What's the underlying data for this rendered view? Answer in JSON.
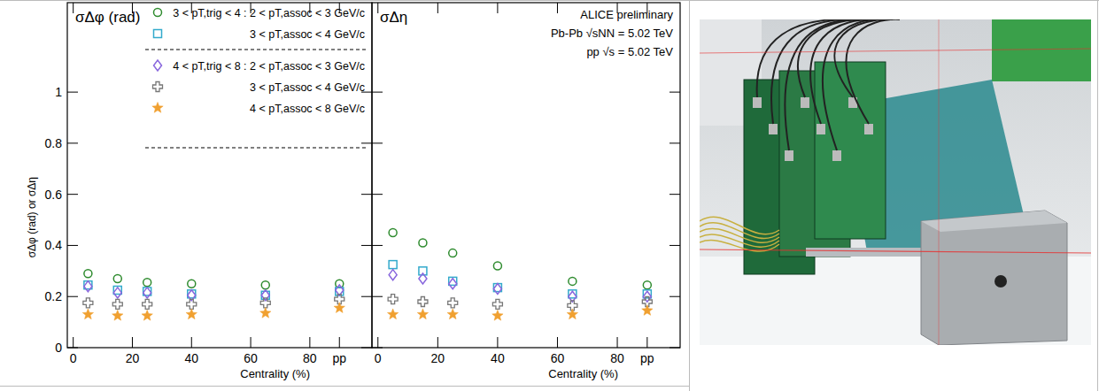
{
  "chart_data": [
    {
      "type": "scatter",
      "title": "σΔφ (rad)",
      "y_label": "σΔφ (rad) or σΔη",
      "x_label": "Centrality (%)",
      "x": [
        5,
        15,
        25,
        40,
        65,
        90
      ],
      "xlim": [
        -2,
        101
      ],
      "ylim": [
        0,
        1.35
      ],
      "xticks": [
        0,
        20,
        40,
        60,
        80,
        {
          "value": 90,
          "label": "pp"
        }
      ],
      "yticks": [
        0,
        0.2,
        0.4,
        0.6,
        0.8,
        1
      ],
      "tick_labels": true,
      "legend": "top-right",
      "series": [
        {
          "name": "3 < pT,trig < 4 : 2 < pT,assoc < 3 GeV/c",
          "color": "#2e8b2e",
          "marker": "circle",
          "values": [
            0.29,
            0.27,
            0.255,
            0.25,
            0.245,
            0.25
          ]
        },
        {
          "name": "3 < pT,assoc < 4 GeV/c",
          "color": "#33aacc",
          "marker": "square",
          "values": [
            0.245,
            0.225,
            0.22,
            0.21,
            0.205,
            0.22
          ]
        },
        {
          "name": "4 < pT,trig < 8 : 2 < pT,assoc < 3 GeV/c",
          "color": "#8866dd",
          "marker": "diamond",
          "values": [
            0.24,
            0.215,
            0.215,
            0.205,
            0.205,
            0.225
          ]
        },
        {
          "name": "3 < pT,assoc < 4 GeV/c",
          "color": "#777777",
          "marker": "cross",
          "values": [
            0.175,
            0.17,
            0.17,
            0.17,
            0.175,
            0.19
          ]
        },
        {
          "name": "4 < pT,assoc < 8 GeV/c",
          "color": "#f0a030",
          "marker": "star",
          "values": [
            0.13,
            0.125,
            0.125,
            0.13,
            0.135,
            0.155
          ]
        }
      ]
    },
    {
      "type": "scatter",
      "title": "σΔη",
      "x_label": "Centrality (%)",
      "annotations": [
        "ALICE preliminary",
        "Pb-Pb √sNN = 5.02 TeV",
        "pp √s = 5.02 TeV"
      ],
      "x": [
        5,
        15,
        25,
        40,
        65,
        90
      ],
      "xlim": [
        -2,
        101
      ],
      "ylim": [
        0,
        1.35
      ],
      "xticks": [
        0,
        20,
        40,
        60,
        80,
        {
          "value": 90,
          "label": "pp"
        }
      ],
      "yticks": [
        0,
        0.2,
        0.4,
        0.6,
        0.8,
        1
      ],
      "tick_labels": "x",
      "series": [
        {
          "color": "#2e8b2e",
          "marker": "circle",
          "values": [
            0.45,
            0.41,
            0.37,
            0.32,
            0.26,
            0.245
          ]
        },
        {
          "color": "#33aacc",
          "marker": "square",
          "values": [
            0.325,
            0.3,
            0.26,
            0.235,
            0.21,
            0.21
          ]
        },
        {
          "color": "#8866dd",
          "marker": "diamond",
          "values": [
            0.285,
            0.27,
            0.25,
            0.23,
            0.2,
            0.2
          ]
        },
        {
          "color": "#777777",
          "marker": "cross",
          "values": [
            0.19,
            0.18,
            0.175,
            0.17,
            0.165,
            0.18
          ]
        },
        {
          "color": "#f0a030",
          "marker": "star",
          "values": [
            0.13,
            0.13,
            0.13,
            0.125,
            0.13,
            0.145
          ]
        }
      ]
    }
  ]
}
